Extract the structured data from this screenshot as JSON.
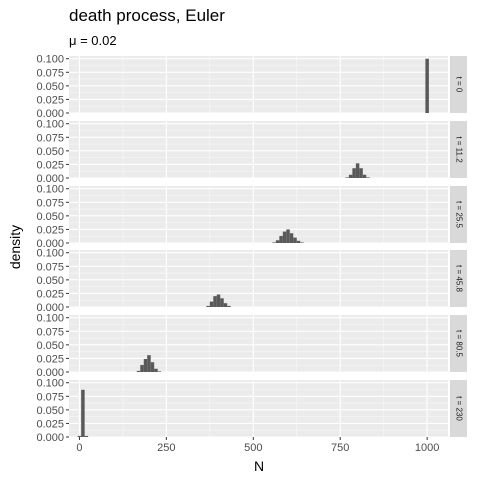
{
  "chart_data": {
    "type": "histogram-facets",
    "title": "death process, Euler",
    "subtitle": "μ = 0.02",
    "xlabel": "N",
    "ylabel": "density",
    "xlim": [
      -30,
      1060
    ],
    "ylim": [
      0,
      0.105
    ],
    "x_ticks": [
      0,
      250,
      500,
      750,
      1000
    ],
    "x_tick_labels": [
      "0",
      "250",
      "500",
      "750",
      "1000"
    ],
    "y_ticks": [
      0,
      0.025,
      0.05,
      0.075,
      0.1
    ],
    "y_tick_labels": [
      "0.000",
      "0.025",
      "0.050",
      "0.075",
      "0.100"
    ],
    "bin_width": 10,
    "bar_color": "#595959",
    "panel_bg": "#ebebeb",
    "strip_bg": "#d9d9d9",
    "grid": true,
    "facets": [
      {
        "label": "t = 0",
        "bins": [
          {
            "x": 1000,
            "density": 0.1
          }
        ]
      },
      {
        "label": "t = 11.2",
        "bins": [
          {
            "x": 770,
            "density": 0.001
          },
          {
            "x": 780,
            "density": 0.006
          },
          {
            "x": 790,
            "density": 0.018
          },
          {
            "x": 800,
            "density": 0.027
          },
          {
            "x": 810,
            "density": 0.018
          },
          {
            "x": 820,
            "density": 0.006
          },
          {
            "x": 830,
            "density": 0.001
          }
        ]
      },
      {
        "label": "t = 25.5",
        "bins": [
          {
            "x": 560,
            "density": 0.001
          },
          {
            "x": 570,
            "density": 0.005
          },
          {
            "x": 580,
            "density": 0.013
          },
          {
            "x": 590,
            "density": 0.021
          },
          {
            "x": 600,
            "density": 0.025
          },
          {
            "x": 610,
            "density": 0.018
          },
          {
            "x": 620,
            "density": 0.01
          },
          {
            "x": 630,
            "density": 0.004
          },
          {
            "x": 640,
            "density": 0.001
          }
        ]
      },
      {
        "label": "t = 45.8",
        "bins": [
          {
            "x": 370,
            "density": 0.002
          },
          {
            "x": 380,
            "density": 0.01
          },
          {
            "x": 390,
            "density": 0.02
          },
          {
            "x": 400,
            "density": 0.023
          },
          {
            "x": 410,
            "density": 0.016
          },
          {
            "x": 420,
            "density": 0.007
          },
          {
            "x": 430,
            "density": 0.002
          }
        ]
      },
      {
        "label": "t = 80.5",
        "bins": [
          {
            "x": 170,
            "density": 0.002
          },
          {
            "x": 180,
            "density": 0.013
          },
          {
            "x": 190,
            "density": 0.024
          },
          {
            "x": 200,
            "density": 0.031
          },
          {
            "x": 210,
            "density": 0.018
          },
          {
            "x": 220,
            "density": 0.006
          },
          {
            "x": 230,
            "density": 0.001
          }
        ]
      },
      {
        "label": "t = 230",
        "bins": [
          {
            "x": 0,
            "density": 0.002
          },
          {
            "x": 10,
            "density": 0.087
          },
          {
            "x": 20,
            "density": 0.002
          }
        ]
      }
    ]
  }
}
